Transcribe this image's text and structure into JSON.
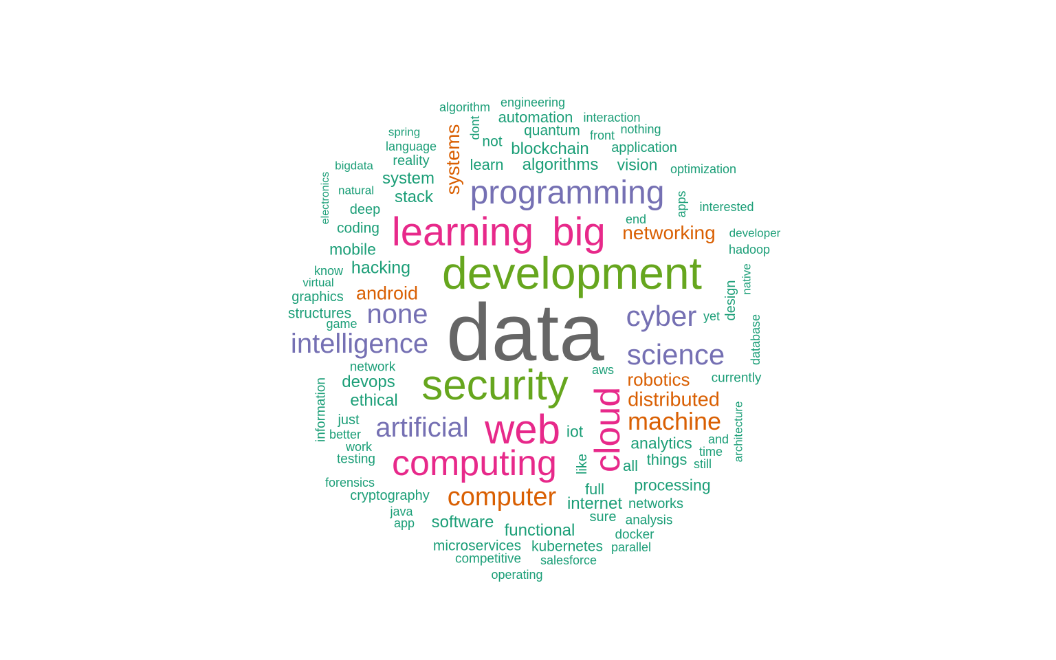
{
  "palette": {
    "green": "#1b9e77",
    "orange": "#d95f02",
    "purple": "#7570b3",
    "pink": "#e7298a",
    "lime": "#66a61e",
    "gray": "#666666"
  },
  "words": [
    {
      "text": "data",
      "color": "gray"
    },
    {
      "text": "development",
      "color": "lime"
    },
    {
      "text": "security",
      "color": "lime"
    },
    {
      "text": "learning",
      "color": "pink"
    },
    {
      "text": "big",
      "color": "pink"
    },
    {
      "text": "web",
      "color": "pink"
    },
    {
      "text": "computing",
      "color": "pink"
    },
    {
      "text": "cloud",
      "color": "pink"
    },
    {
      "text": "programming",
      "color": "purple"
    },
    {
      "text": "intelligence",
      "color": "purple"
    },
    {
      "text": "none",
      "color": "purple"
    },
    {
      "text": "cyber",
      "color": "purple"
    },
    {
      "text": "science",
      "color": "purple"
    },
    {
      "text": "artificial",
      "color": "purple"
    },
    {
      "text": "computer",
      "color": "orange"
    },
    {
      "text": "machine",
      "color": "orange"
    },
    {
      "text": "systems",
      "color": "orange"
    },
    {
      "text": "networking",
      "color": "orange"
    },
    {
      "text": "android",
      "color": "orange"
    },
    {
      "text": "robotics",
      "color": "orange"
    },
    {
      "text": "distributed",
      "color": "orange"
    },
    {
      "text": "algorithm",
      "color": "green"
    },
    {
      "text": "engineering",
      "color": "green"
    },
    {
      "text": "automation",
      "color": "green"
    },
    {
      "text": "interaction",
      "color": "green"
    },
    {
      "text": "quantum",
      "color": "green"
    },
    {
      "text": "nothing",
      "color": "green"
    },
    {
      "text": "front",
      "color": "green"
    },
    {
      "text": "spring",
      "color": "green"
    },
    {
      "text": "language",
      "color": "green"
    },
    {
      "text": "dont",
      "color": "green"
    },
    {
      "text": "not",
      "color": "green"
    },
    {
      "text": "blockchain",
      "color": "green"
    },
    {
      "text": "application",
      "color": "green"
    },
    {
      "text": "reality",
      "color": "green"
    },
    {
      "text": "bigdata",
      "color": "green"
    },
    {
      "text": "learn",
      "color": "green"
    },
    {
      "text": "algorithms",
      "color": "green"
    },
    {
      "text": "vision",
      "color": "green"
    },
    {
      "text": "optimization",
      "color": "green"
    },
    {
      "text": "system",
      "color": "green"
    },
    {
      "text": "electronics",
      "color": "green"
    },
    {
      "text": "natural",
      "color": "green"
    },
    {
      "text": "stack",
      "color": "green"
    },
    {
      "text": "apps",
      "color": "green"
    },
    {
      "text": "interested",
      "color": "green"
    },
    {
      "text": "deep",
      "color": "green"
    },
    {
      "text": "end",
      "color": "green"
    },
    {
      "text": "coding",
      "color": "green"
    },
    {
      "text": "developer",
      "color": "green"
    },
    {
      "text": "mobile",
      "color": "green"
    },
    {
      "text": "hadoop",
      "color": "green"
    },
    {
      "text": "hacking",
      "color": "green"
    },
    {
      "text": "know",
      "color": "green"
    },
    {
      "text": "native",
      "color": "green"
    },
    {
      "text": "virtual",
      "color": "green"
    },
    {
      "text": "design",
      "color": "green"
    },
    {
      "text": "graphics",
      "color": "green"
    },
    {
      "text": "structures",
      "color": "green"
    },
    {
      "text": "game",
      "color": "green"
    },
    {
      "text": "yet",
      "color": "green"
    },
    {
      "text": "database",
      "color": "green"
    },
    {
      "text": "network",
      "color": "green"
    },
    {
      "text": "aws",
      "color": "green"
    },
    {
      "text": "devops",
      "color": "green"
    },
    {
      "text": "currently",
      "color": "green"
    },
    {
      "text": "information",
      "color": "green"
    },
    {
      "text": "ethical",
      "color": "green"
    },
    {
      "text": "just",
      "color": "green"
    },
    {
      "text": "architecture",
      "color": "green"
    },
    {
      "text": "iot",
      "color": "green"
    },
    {
      "text": "better",
      "color": "green"
    },
    {
      "text": "and",
      "color": "green"
    },
    {
      "text": "analytics",
      "color": "green"
    },
    {
      "text": "work",
      "color": "green"
    },
    {
      "text": "time",
      "color": "green"
    },
    {
      "text": "testing",
      "color": "green"
    },
    {
      "text": "like",
      "color": "green"
    },
    {
      "text": "things",
      "color": "green"
    },
    {
      "text": "still",
      "color": "green"
    },
    {
      "text": "all",
      "color": "green"
    },
    {
      "text": "forensics",
      "color": "green"
    },
    {
      "text": "processing",
      "color": "green"
    },
    {
      "text": "full",
      "color": "green"
    },
    {
      "text": "cryptography",
      "color": "green"
    },
    {
      "text": "internet",
      "color": "green"
    },
    {
      "text": "networks",
      "color": "green"
    },
    {
      "text": "java",
      "color": "green"
    },
    {
      "text": "sure",
      "color": "green"
    },
    {
      "text": "app",
      "color": "green"
    },
    {
      "text": "analysis",
      "color": "green"
    },
    {
      "text": "software",
      "color": "green"
    },
    {
      "text": "functional",
      "color": "green"
    },
    {
      "text": "docker",
      "color": "green"
    },
    {
      "text": "microservices",
      "color": "green"
    },
    {
      "text": "kubernetes",
      "color": "green"
    },
    {
      "text": "parallel",
      "color": "green"
    },
    {
      "text": "competitive",
      "color": "green"
    },
    {
      "text": "salesforce",
      "color": "green"
    },
    {
      "text": "operating",
      "color": "green"
    }
  ]
}
